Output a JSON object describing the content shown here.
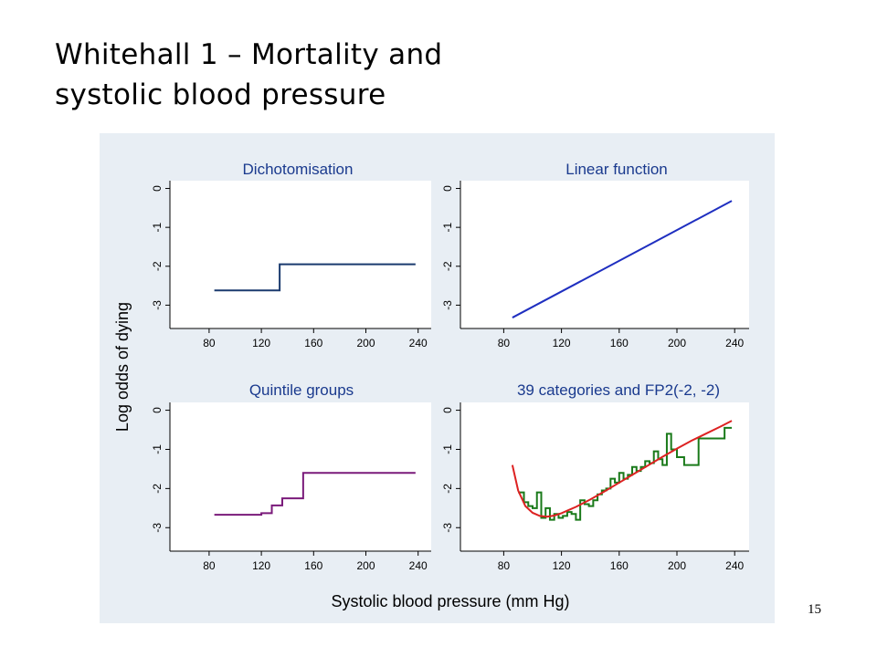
{
  "slide": {
    "title_lines": [
      "Whitehall 1 – Mortality and",
      "systolic blood pressure"
    ],
    "page_number": "15"
  },
  "figure": {
    "ylabel": "Log odds of dying",
    "xlabel": "Systolic blood pressure (mm Hg)",
    "panel_background": "#e8eef4"
  },
  "chart_data": [
    {
      "type": "line",
      "title": "Dichotomisation",
      "color": "#1a3a6e",
      "step": true,
      "x_ticks": [
        80,
        120,
        160,
        200,
        240
      ],
      "y_ticks": [
        0,
        -1,
        -2,
        -3
      ],
      "xlim": [
        50,
        250
      ],
      "ylim": [
        -3.6,
        0.2
      ],
      "series": [
        {
          "x": [
            84,
            134,
            134,
            238
          ],
          "y": [
            -2.62,
            -2.62,
            -1.95,
            -1.95
          ]
        }
      ]
    },
    {
      "type": "line",
      "title": "Linear function",
      "color": "#1f2fc0",
      "step": false,
      "x_ticks": [
        80,
        120,
        160,
        200,
        240
      ],
      "y_ticks": [
        0,
        -1,
        -2,
        -3
      ],
      "xlim": [
        50,
        250
      ],
      "ylim": [
        -3.6,
        0.2
      ],
      "series": [
        {
          "x": [
            86,
            238
          ],
          "y": [
            -3.32,
            -0.32
          ]
        }
      ]
    },
    {
      "type": "line",
      "title": "Quintile groups",
      "color": "#7a1a7a",
      "step": true,
      "x_ticks": [
        80,
        120,
        160,
        200,
        240
      ],
      "y_ticks": [
        0,
        -1,
        -2,
        -3
      ],
      "xlim": [
        50,
        250
      ],
      "ylim": [
        -3.6,
        0.2
      ],
      "series": [
        {
          "x": [
            84,
            120,
            120,
            128,
            128,
            136,
            136,
            144,
            144,
            152,
            152,
            238
          ],
          "y": [
            -2.67,
            -2.67,
            -2.63,
            -2.63,
            -2.43,
            -2.43,
            -2.25,
            -2.25,
            -2.25,
            -2.25,
            -1.6,
            -1.6
          ]
        }
      ]
    },
    {
      "type": "line",
      "title": "39 categories and FP2(-2, -2)",
      "x_ticks": [
        80,
        120,
        160,
        200,
        240
      ],
      "y_ticks": [
        0,
        -1,
        -2,
        -3
      ],
      "xlim": [
        50,
        250
      ],
      "ylim": [
        -3.6,
        0.2
      ],
      "series": [
        {
          "color": "#1a7a1a",
          "step": true,
          "x": [
            90,
            94,
            97,
            100,
            103,
            106,
            109,
            112,
            115,
            118,
            121,
            124,
            127,
            130,
            133,
            136,
            139,
            142,
            145,
            148,
            151,
            154,
            157,
            160,
            163,
            166,
            169,
            172,
            175,
            178,
            181,
            184,
            187,
            190,
            193,
            196,
            200,
            205,
            215,
            233
          ],
          "y": [
            -2.1,
            -2.35,
            -2.45,
            -2.5,
            -2.1,
            -2.75,
            -2.5,
            -2.8,
            -2.65,
            -2.75,
            -2.7,
            -2.6,
            -2.65,
            -2.8,
            -2.3,
            -2.4,
            -2.45,
            -2.3,
            -2.15,
            -2.05,
            -2.0,
            -1.75,
            -1.85,
            -1.6,
            -1.75,
            -1.65,
            -1.45,
            -1.55,
            -1.45,
            -1.3,
            -1.35,
            -1.05,
            -1.25,
            -1.4,
            -0.6,
            -1.0,
            -1.2,
            -1.4,
            -0.72,
            -0.45
          ]
        },
        {
          "color": "#dd2222",
          "step": false,
          "x": [
            86,
            90,
            95,
            100,
            105,
            110,
            115,
            120,
            125,
            130,
            140,
            150,
            160,
            170,
            180,
            190,
            200,
            210,
            220,
            230,
            238
          ],
          "y": [
            -1.4,
            -2.05,
            -2.45,
            -2.62,
            -2.7,
            -2.72,
            -2.69,
            -2.63,
            -2.55,
            -2.47,
            -2.28,
            -2.07,
            -1.85,
            -1.63,
            -1.41,
            -1.19,
            -0.98,
            -0.78,
            -0.6,
            -0.42,
            -0.27
          ]
        }
      ]
    }
  ]
}
